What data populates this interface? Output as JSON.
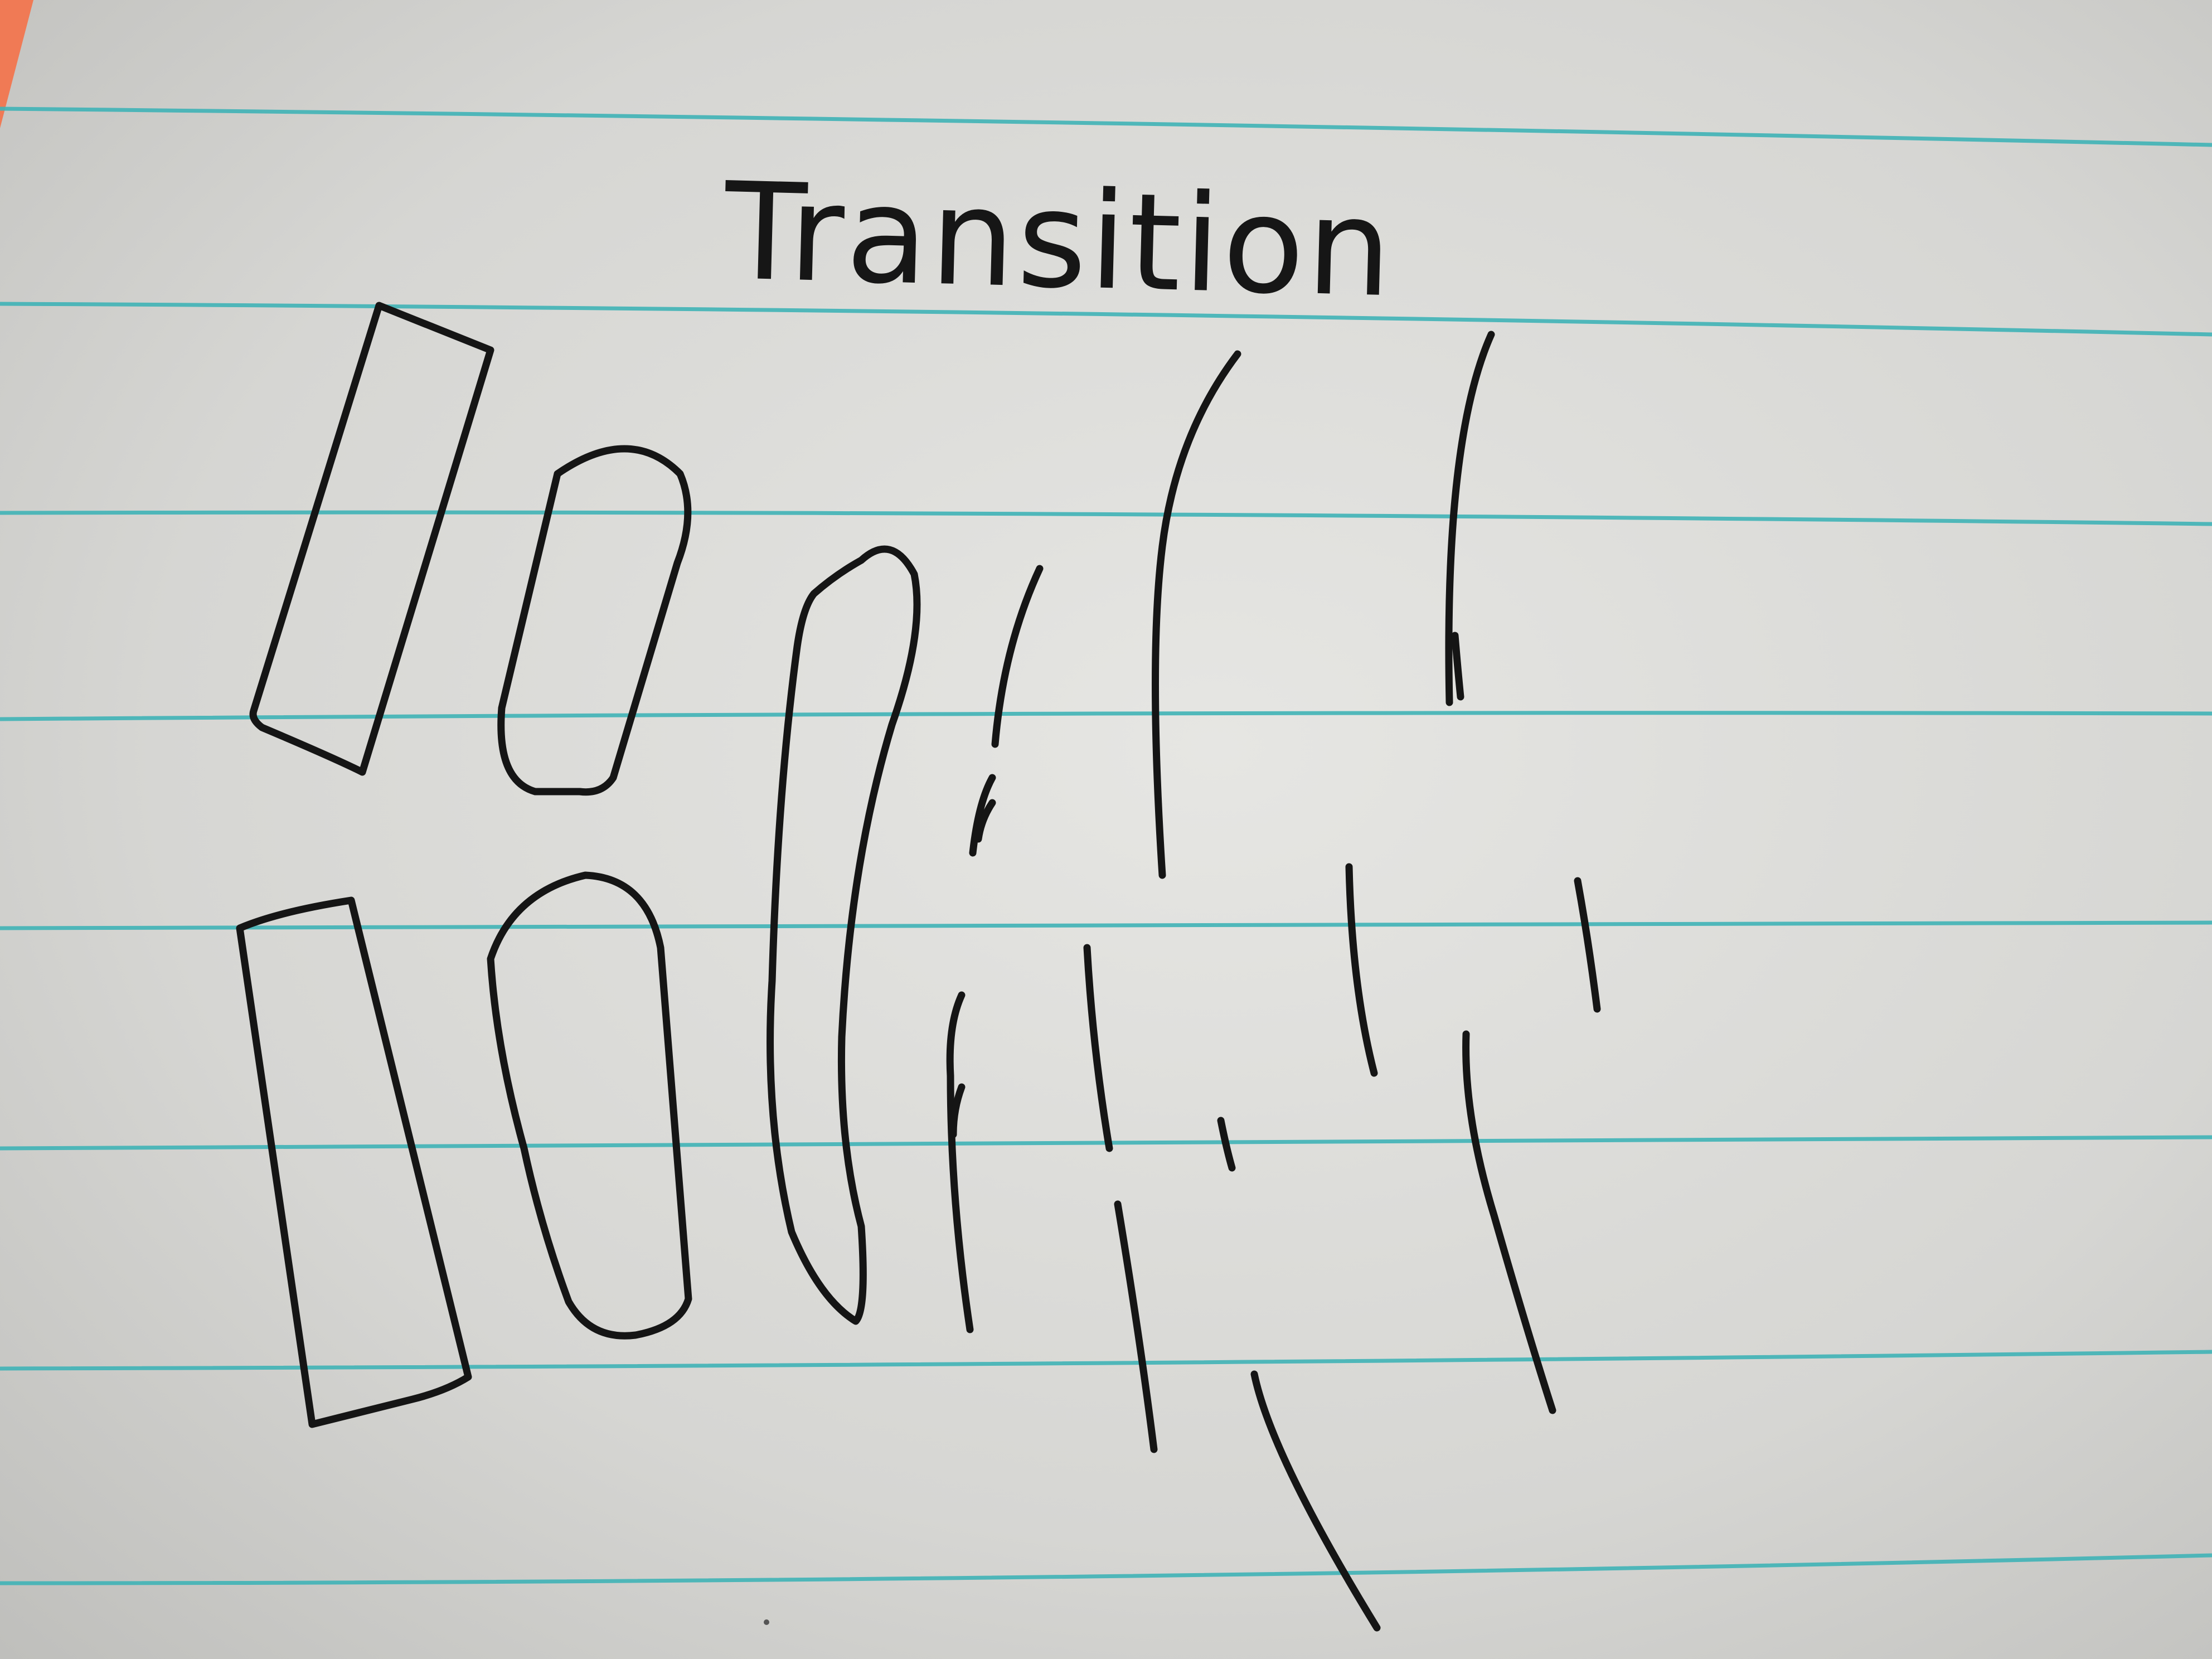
{
  "note": {
    "title": "Transition",
    "ink_color": "#151515",
    "rule_color": "#3fb2b6",
    "margin_color": "#f07a55",
    "paper_color": "#d9d9d6"
  }
}
